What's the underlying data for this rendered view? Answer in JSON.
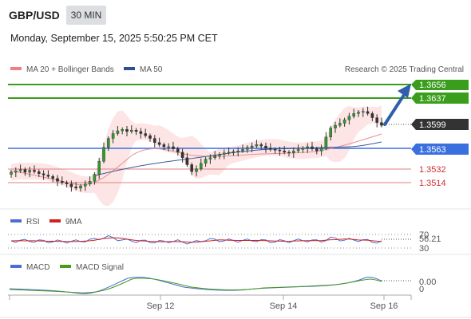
{
  "header": {
    "pair": "GBP/USD",
    "timeframe": "30 MIN",
    "datetime": "Monday, September 15, 2025 5:50:25 PM CET"
  },
  "main_legend": {
    "bb_label": "MA 20 + Bollinger Bands",
    "ma50_label": "MA 50",
    "credit": "Research © 2025 Trading Central",
    "colors": {
      "bb": "#f08080",
      "ma50": "#2f4f8f"
    }
  },
  "levels": [
    {
      "value": "1.3656",
      "price": 1.3656,
      "style": "green-box",
      "color": "#3a9d1c"
    },
    {
      "value": "1.3637",
      "price": 1.3637,
      "style": "green-box",
      "color": "#3a9d1c"
    },
    {
      "value": "1.3599",
      "price": 1.3599,
      "style": "dark-box",
      "color": "#333333"
    },
    {
      "value": "1.3563",
      "price": 1.3563,
      "style": "blue-box",
      "color": "#3a6fe0"
    },
    {
      "value": "1.3532",
      "price": 1.3532,
      "style": "red-text",
      "color": "#d03030"
    },
    {
      "value": "1.3514",
      "price": 1.3514,
      "style": "red-text",
      "color": "#d03030"
    }
  ],
  "rsi_legend": {
    "rsi_label": "RSI",
    "ma_label": "9MA",
    "colors": {
      "rsi": "#4a6fd0",
      "ma": "#d02020"
    }
  },
  "rsi_axis": {
    "top": "70",
    "current": "56.21",
    "bottom": "30"
  },
  "macd_legend": {
    "macd_label": "MACD",
    "signal_label": "MACD Signal",
    "colors": {
      "macd": "#4a6fd0",
      "signal": "#4a9a20"
    }
  },
  "macd_axis": {
    "current": "0.00",
    "zero": "0"
  },
  "x_axis": {
    "labels": [
      "Sep 12",
      "Sep 14",
      "Sep 16"
    ]
  },
  "chart_data": {
    "type": "line",
    "series": [
      {
        "name": "GBP/USD",
        "values": [
          1.3529,
          1.3531,
          1.3533,
          1.3529,
          1.3532,
          1.353,
          1.3527,
          1.3525,
          1.3523,
          1.352,
          1.3516,
          1.3514,
          1.3512,
          1.3508,
          1.3506,
          1.3509,
          1.3512,
          1.3516,
          1.3526,
          1.3545,
          1.3565,
          1.3578,
          1.3585,
          1.3589,
          1.3591,
          1.3588,
          1.359,
          1.3588,
          1.3585,
          1.3582,
          1.3578,
          1.3572,
          1.3569,
          1.3566,
          1.3566,
          1.3563,
          1.3558,
          1.355,
          1.354,
          1.353,
          1.3534,
          1.3542,
          1.3548,
          1.355,
          1.3553,
          1.3555,
          1.3557,
          1.3558,
          1.3559,
          1.356,
          1.3562,
          1.3565,
          1.3567,
          1.3569,
          1.3567,
          1.3564,
          1.3562,
          1.3561,
          1.356,
          1.3558,
          1.3557,
          1.356,
          1.3562,
          1.3564,
          1.3566,
          1.3563,
          1.356,
          1.3564,
          1.358,
          1.3593,
          1.3597,
          1.36,
          1.3605,
          1.361,
          1.3614,
          1.3616,
          1.3617,
          1.3614,
          1.3608,
          1.3601,
          1.3597
        ]
      }
    ]
  }
}
